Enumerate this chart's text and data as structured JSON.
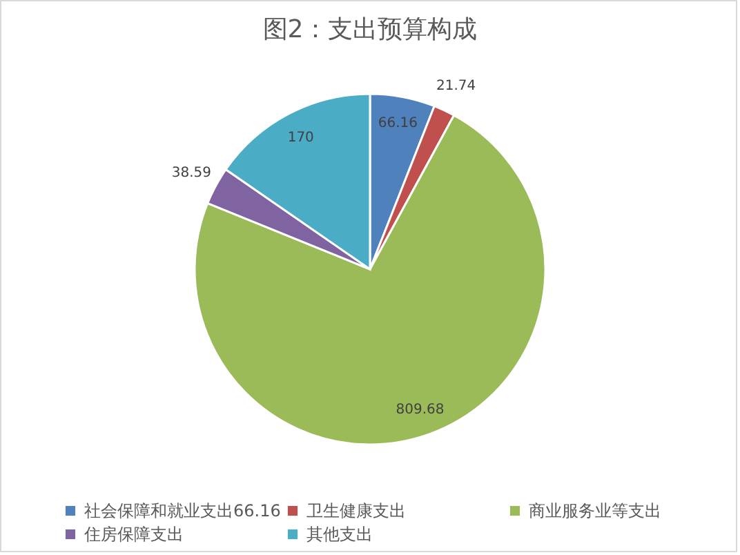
{
  "chart_data": {
    "type": "pie",
    "title": "图2：支出预算构成",
    "categories": [
      "社会保障和就业支出66.16",
      "卫生健康支出",
      "商业服务业等支出",
      "住房保障支出",
      "其他支出"
    ],
    "values": [
      66.16,
      21.74,
      809.68,
      38.59,
      170
    ],
    "colors": [
      "#4f81bd",
      "#c0504d",
      "#9bbb59",
      "#8064a2",
      "#4bacc6"
    ],
    "data_labels": true,
    "legend": "bottom"
  }
}
